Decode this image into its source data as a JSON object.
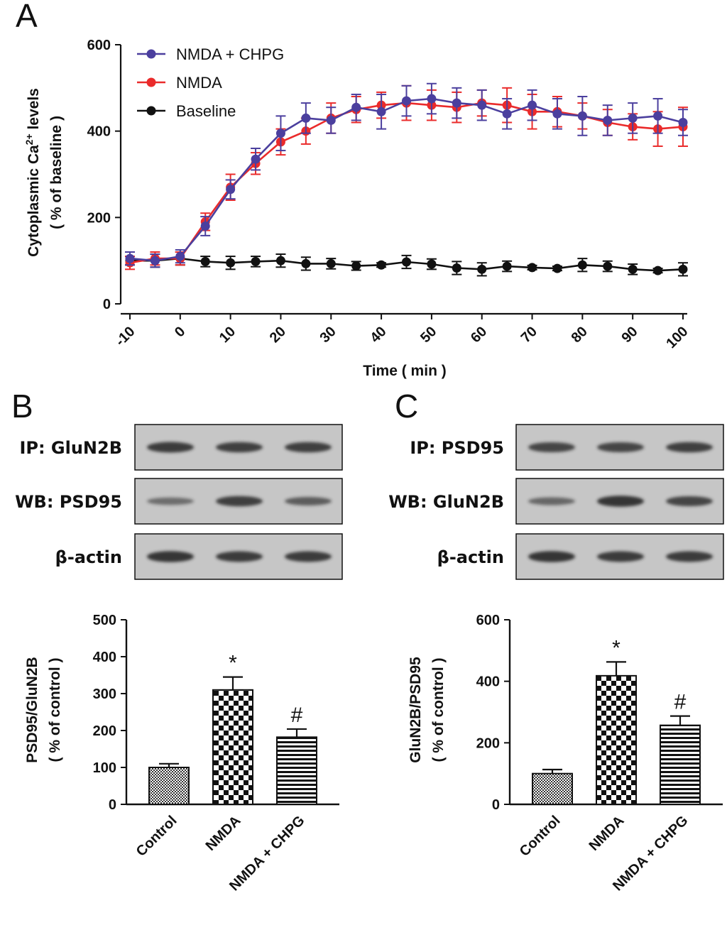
{
  "panels": {
    "a": {
      "letter": "A"
    },
    "b": {
      "letter": "B"
    },
    "c": {
      "letter": "C"
    }
  },
  "colors": {
    "chpg": "#4b3f9e",
    "nmda": "#ea2b2b",
    "baseline": "#111111",
    "blot_bg": "#c6c6c6",
    "band": "#2e2e2e"
  },
  "blots": {
    "b": {
      "rows": [
        {
          "label": "IP: GluN2B",
          "intensities": [
            0.9,
            0.85,
            0.85
          ]
        },
        {
          "label": "WB: PSD95",
          "intensities": [
            0.45,
            0.85,
            0.6
          ]
        },
        {
          "label": "β-actin",
          "intensities": [
            0.95,
            0.9,
            0.9
          ]
        }
      ]
    },
    "c": {
      "rows": [
        {
          "label": "IP: PSD95",
          "intensities": [
            0.8,
            0.8,
            0.85
          ]
        },
        {
          "label": "WB: GluN2B",
          "intensities": [
            0.5,
            0.95,
            0.8
          ]
        },
        {
          "label": "β-actin",
          "intensities": [
            0.95,
            0.9,
            0.9
          ]
        }
      ]
    }
  },
  "chart_data": [
    {
      "id": "A",
      "type": "line",
      "title": "",
      "xlabel": "Time ( min )",
      "ylabel_line1": "Cytoplasmic Ca",
      "ylabel_sup": "2+",
      "ylabel_line1_end": " levels",
      "ylabel_line2": "( % of baseline )",
      "x": [
        -10,
        -5,
        0,
        5,
        10,
        15,
        20,
        25,
        30,
        35,
        40,
        45,
        50,
        55,
        60,
        65,
        70,
        75,
        80,
        85,
        90,
        95,
        100
      ],
      "xlim": [
        -10,
        100
      ],
      "ylim": [
        0,
        600
      ],
      "xticks": [
        -10,
        0,
        10,
        20,
        30,
        40,
        50,
        60,
        70,
        80,
        90,
        100
      ],
      "xtick_labels": [
        "-10",
        "0",
        "10",
        "20",
        "30",
        "40",
        "50",
        "60",
        "70",
        "80",
        "90",
        "100"
      ],
      "yticks": [
        0,
        200,
        400,
        600
      ],
      "ytick_labels": [
        "0",
        "200",
        "400",
        "600"
      ],
      "legend_position": "top-left",
      "series": [
        {
          "name": "NMDA + CHPG",
          "color": "#4b3f9e",
          "values": [
            105,
            100,
            110,
            180,
            265,
            335,
            395,
            430,
            425,
            455,
            445,
            470,
            475,
            465,
            460,
            440,
            460,
            440,
            435,
            425,
            430,
            435,
            420
          ],
          "errors": [
            15,
            15,
            15,
            22,
            22,
            25,
            40,
            35,
            30,
            30,
            40,
            35,
            35,
            35,
            35,
            35,
            35,
            35,
            45,
            35,
            35,
            40,
            30
          ]
        },
        {
          "name": "NMDA",
          "color": "#ea2b2b",
          "values": [
            95,
            105,
            105,
            190,
            270,
            325,
            375,
            400,
            430,
            450,
            460,
            465,
            460,
            455,
            465,
            460,
            445,
            445,
            435,
            420,
            410,
            405,
            410
          ],
          "errors": [
            15,
            15,
            15,
            20,
            30,
            25,
            30,
            30,
            35,
            30,
            30,
            40,
            35,
            35,
            30,
            40,
            40,
            35,
            30,
            30,
            30,
            40,
            45
          ]
        },
        {
          "name": "Baseline",
          "color": "#111111",
          "values": [
            100,
            100,
            105,
            98,
            95,
            98,
            100,
            93,
            93,
            88,
            90,
            97,
            92,
            83,
            80,
            87,
            84,
            82,
            90,
            87,
            80,
            77,
            80
          ],
          "errors": [
            10,
            15,
            15,
            12,
            15,
            12,
            15,
            15,
            12,
            10,
            5,
            15,
            12,
            15,
            15,
            12,
            5,
            5,
            15,
            12,
            12,
            5,
            15
          ]
        }
      ]
    },
    {
      "id": "B",
      "type": "bar",
      "title": "",
      "xlabel": "",
      "ylabel_line1": "PSD95/GluN2B",
      "ylabel_line2": "( % of control )",
      "categories": [
        "Control",
        "NMDA",
        "NMDA + CHPG"
      ],
      "values": [
        100,
        310,
        182
      ],
      "errors": [
        10,
        35,
        22
      ],
      "annotations": [
        "",
        "*",
        "#"
      ],
      "patterns": [
        "dots",
        "checker",
        "stripes"
      ],
      "ylim": [
        0,
        500
      ],
      "yticks": [
        0,
        100,
        200,
        300,
        400,
        500
      ],
      "ytick_labels": [
        "0",
        "100",
        "200",
        "300",
        "400",
        "500"
      ]
    },
    {
      "id": "C",
      "type": "bar",
      "title": "",
      "xlabel": "",
      "ylabel_line1": "GluN2B/PSD95",
      "ylabel_line2": "( % of control )",
      "categories": [
        "Control",
        "NMDA",
        "NMDA + CHPG"
      ],
      "values": [
        100,
        418,
        257
      ],
      "errors": [
        13,
        45,
        30
      ],
      "annotations": [
        "",
        "*",
        "#"
      ],
      "patterns": [
        "dots",
        "checker",
        "stripes"
      ],
      "ylim": [
        0,
        600
      ],
      "yticks": [
        0,
        200,
        400,
        600
      ],
      "ytick_labels": [
        "0",
        "200",
        "400",
        "600"
      ]
    }
  ]
}
